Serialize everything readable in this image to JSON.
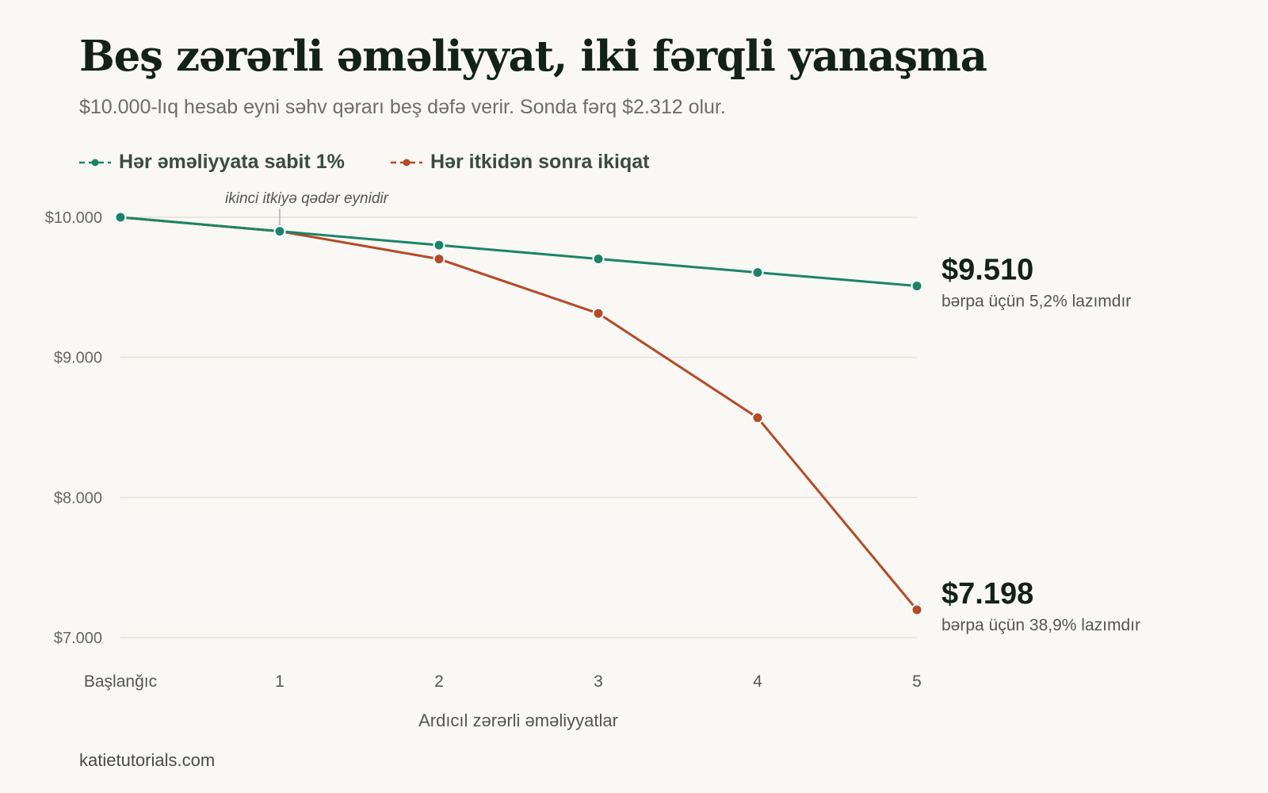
{
  "header": {
    "title": "Beş zərərli əməliyyat, iki fərqli yanaşma",
    "subtitle": "$10.000-lıq hesab eyni səhv qərarı beş dəfə verir. Sonda fərq $2.312 olur."
  },
  "footer": {
    "source": "katietutorials.com"
  },
  "chart_data": {
    "type": "line",
    "title": "Beş zərərli əməliyyat, iki fərqli yanaşma",
    "subtitle": "$10.000-lıq hesab eyni səhv qərarı beş dəfə verir. Sonda fərq $2.312 olur.",
    "xlabel": "Ardıcıl zərərli əməliyyatlar",
    "ylabel": "",
    "categories": [
      "Başlanğıc",
      "1",
      "2",
      "3",
      "4",
      "5"
    ],
    "ylim": [
      7000,
      10000
    ],
    "yticks": [
      7000,
      8000,
      9000,
      10000
    ],
    "ytick_labels": [
      "$7.000",
      "$8.000",
      "$9.000",
      "$10.000"
    ],
    "grid": true,
    "legend_position": "top-left",
    "series": [
      {
        "name": "Hər əməliyyata sabit 1%",
        "color": "#1b8468",
        "values": [
          10000,
          9900,
          9801,
          9703,
          9606,
          9510
        ],
        "end_value_label": "$9.510",
        "end_note": "bərpa üçün 5,2% lazımdır"
      },
      {
        "name": "Hər itkidən sonra ikiqat",
        "color": "#b54a26",
        "values": [
          10000,
          9900,
          9702,
          9314,
          8569,
          7198
        ],
        "end_value_label": "$7.198",
        "end_note": "bərpa üçün 38,9% lazımdır"
      }
    ],
    "annotations": [
      {
        "text": "ikinci itkiyə qədər eynidir",
        "x_index": 1
      }
    ]
  }
}
